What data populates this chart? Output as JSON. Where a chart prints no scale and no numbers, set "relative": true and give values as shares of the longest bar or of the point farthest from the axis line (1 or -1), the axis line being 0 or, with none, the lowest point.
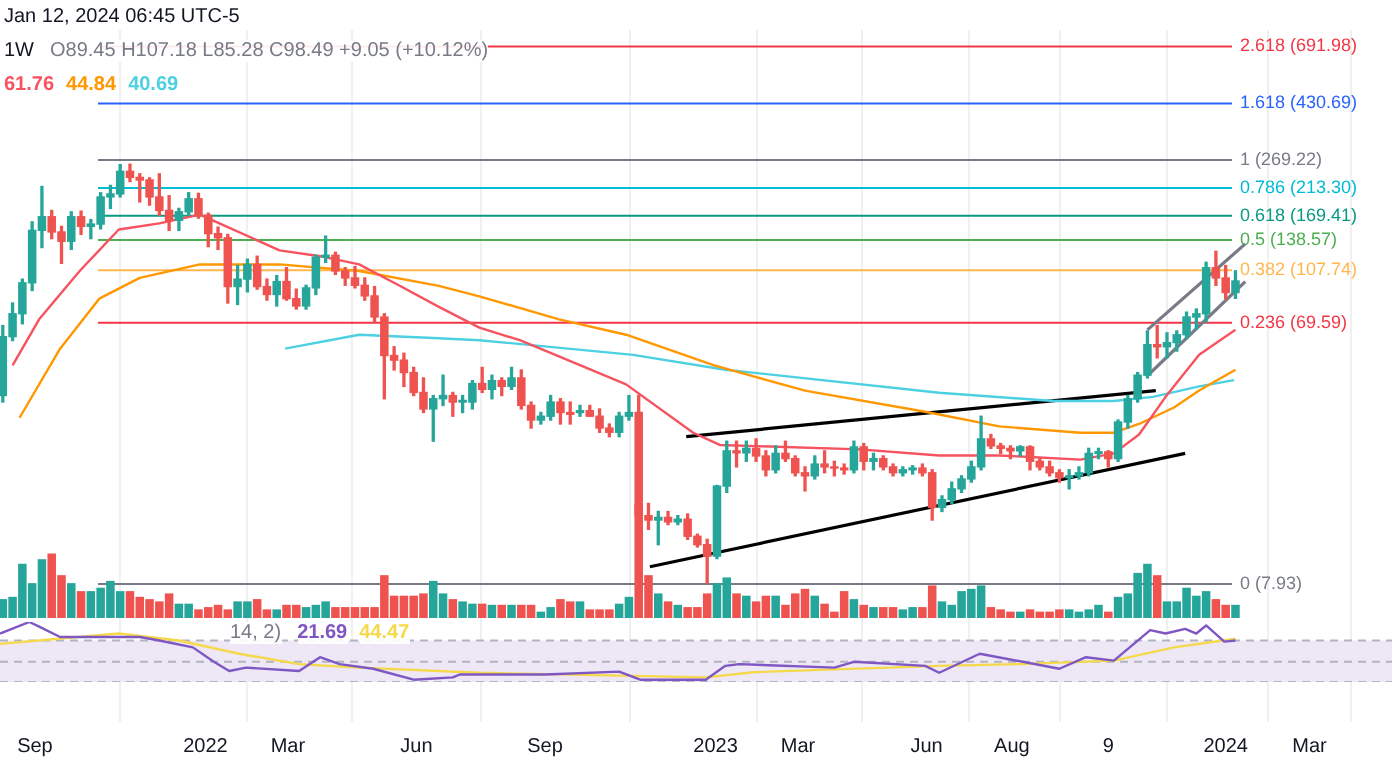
{
  "chart_data": [
    {
      "type": "candlestick",
      "title": "Jan 12, 2024 06:45 UTC-5",
      "subtitle": "1W",
      "annotations": [
        "O89.45 H107.18 L85.28 C98.49 +9.05 (+10.12%)"
      ],
      "log": true,
      "grid": "x",
      "legend": "top left",
      "tick_labels": "x",
      "xlim": [
        "2021-08-07",
        "2024-04-29"
      ],
      "ylim": [
        2.52,
        793
      ],
      "xticks": [
        {
          "value": "2021-09-01",
          "label": "Sep"
        },
        {
          "value": "2022-01-01",
          "label": "2022"
        },
        {
          "value": "2022-03-01",
          "label": "Mar"
        },
        {
          "value": "2022-06-01",
          "label": "Jun"
        },
        {
          "value": "2022-09-01",
          "label": "Sep"
        },
        {
          "value": "2023-01-01",
          "label": "2023"
        },
        {
          "value": "2023-03-01",
          "label": "Mar"
        },
        {
          "value": "2023-06-01",
          "label": "Jun"
        },
        {
          "value": "2023-08-01",
          "label": "Aug"
        },
        {
          "value": "2023-10-09",
          "label": "9"
        },
        {
          "value": "2024-01-01",
          "label": "2024"
        },
        {
          "value": "2024-03-01",
          "label": "Mar"
        }
      ],
      "x": [
        "2021-08-09",
        "2021-08-16",
        "2021-08-23",
        "2021-08-30",
        "2021-09-06",
        "2021-09-13",
        "2021-09-20",
        "2021-09-27",
        "2021-10-04",
        "2021-10-11",
        "2021-10-18",
        "2021-10-25",
        "2021-11-01",
        "2021-11-08",
        "2021-11-15",
        "2021-11-22",
        "2021-11-29",
        "2021-12-06",
        "2021-12-13",
        "2021-12-20",
        "2021-12-27",
        "2022-01-03",
        "2022-01-10",
        "2022-01-17",
        "2022-01-24",
        "2022-01-31",
        "2022-02-07",
        "2022-02-14",
        "2022-02-21",
        "2022-02-28",
        "2022-03-07",
        "2022-03-14",
        "2022-03-21",
        "2022-03-28",
        "2022-04-04",
        "2022-04-11",
        "2022-04-18",
        "2022-04-25",
        "2022-05-02",
        "2022-05-09",
        "2022-05-16",
        "2022-05-23",
        "2022-05-30",
        "2022-06-06",
        "2022-06-13",
        "2022-06-20",
        "2022-06-27",
        "2022-07-04",
        "2022-07-11",
        "2022-07-18",
        "2022-07-25",
        "2022-08-01",
        "2022-08-08",
        "2022-08-15",
        "2022-08-22",
        "2022-08-29",
        "2022-09-05",
        "2022-09-12",
        "2022-09-19",
        "2022-09-26",
        "2022-10-03",
        "2022-10-10",
        "2022-10-17",
        "2022-10-24",
        "2022-10-31",
        "2022-11-07",
        "2022-11-14",
        "2022-11-21",
        "2022-11-28",
        "2022-12-05",
        "2022-12-12",
        "2022-12-19",
        "2022-12-26",
        "2023-01-02",
        "2023-01-09",
        "2023-01-16",
        "2023-01-23",
        "2023-01-30",
        "2023-02-06",
        "2023-02-13",
        "2023-02-20",
        "2023-02-27",
        "2023-03-06",
        "2023-03-13",
        "2023-03-20",
        "2023-03-27",
        "2023-04-03",
        "2023-04-10",
        "2023-04-17",
        "2023-04-24",
        "2023-05-01",
        "2023-05-08",
        "2023-05-15",
        "2023-05-22",
        "2023-05-29",
        "2023-06-05",
        "2023-06-12",
        "2023-06-19",
        "2023-06-26",
        "2023-07-03",
        "2023-07-10",
        "2023-07-17",
        "2023-07-24",
        "2023-07-31",
        "2023-08-07",
        "2023-08-14",
        "2023-08-21",
        "2023-08-28",
        "2023-09-04",
        "2023-09-11",
        "2023-09-18",
        "2023-09-25",
        "2023-10-02",
        "2023-10-09",
        "2023-10-16",
        "2023-10-23",
        "2023-10-30",
        "2023-11-06",
        "2023-11-13",
        "2023-11-20",
        "2023-11-27",
        "2023-12-04",
        "2023-12-11",
        "2023-12-18",
        "2023-12-25",
        "2024-01-01",
        "2024-01-08"
      ],
      "ohlc": [
        [
          38,
          68,
          36,
          62
        ],
        [
          62,
          82,
          60,
          75
        ],
        [
          75,
          100,
          69,
          97
        ],
        [
          97,
          161,
          91,
          150
        ],
        [
          150,
          216,
          130,
          168
        ],
        [
          168,
          177,
          140,
          148
        ],
        [
          148,
          155,
          114,
          137
        ],
        [
          137,
          175,
          128,
          168
        ],
        [
          168,
          176,
          145,
          155
        ],
        [
          155,
          164,
          140,
          158
        ],
        [
          158,
          205,
          152,
          198
        ],
        [
          198,
          218,
          180,
          203
        ],
        [
          203,
          259,
          198,
          245
        ],
        [
          245,
          260,
          225,
          233
        ],
        [
          233,
          240,
          190,
          228
        ],
        [
          228,
          232,
          185,
          198
        ],
        [
          198,
          240,
          170,
          177
        ],
        [
          177,
          200,
          150,
          163
        ],
        [
          163,
          180,
          150,
          175
        ],
        [
          175,
          205,
          170,
          195
        ],
        [
          195,
          204,
          166,
          170
        ],
        [
          170,
          173,
          131,
          146
        ],
        [
          146,
          154,
          128,
          141
        ],
        [
          141,
          145,
          82,
          94
        ],
        [
          94,
          112,
          81,
          100
        ],
        [
          100,
          118,
          90,
          113
        ],
        [
          113,
          121,
          92,
          94
        ],
        [
          94,
          100,
          84,
          88
        ],
        [
          88,
          103,
          80,
          98
        ],
        [
          98,
          110,
          84,
          85
        ],
        [
          85,
          92,
          78,
          80
        ],
        [
          80,
          95,
          78,
          93
        ],
        [
          93,
          122,
          88,
          120
        ],
        [
          120,
          143,
          115,
          122
        ],
        [
          122,
          125,
          104,
          107
        ],
        [
          107,
          110,
          95,
          101
        ],
        [
          101,
          111,
          93,
          95
        ],
        [
          95,
          101,
          84,
          87
        ],
        [
          87,
          94,
          70,
          73
        ],
        [
          73,
          75,
          37,
          53
        ],
        [
          53,
          57,
          47,
          51
        ],
        [
          51,
          54,
          41,
          46
        ],
        [
          46,
          48,
          38,
          39
        ],
        [
          39,
          44,
          33,
          34
        ],
        [
          34,
          38,
          26,
          37
        ],
        [
          37,
          45,
          35,
          38
        ],
        [
          38,
          39,
          32,
          36
        ],
        [
          36,
          38,
          33,
          36.5
        ],
        [
          36,
          43,
          34,
          42
        ],
        [
          42,
          48,
          39,
          40
        ],
        [
          40,
          45,
          37,
          43
        ],
        [
          43,
          44,
          38,
          41
        ],
        [
          41,
          48,
          40,
          44
        ],
        [
          44,
          47,
          34,
          35
        ],
        [
          35,
          36,
          29,
          31
        ],
        [
          31,
          33,
          30,
          32
        ],
        [
          32,
          38,
          31,
          36
        ],
        [
          36,
          37,
          30,
          33
        ],
        [
          33,
          36,
          30,
          32.5
        ],
        [
          33,
          35,
          32,
          33.5
        ],
        [
          33.5,
          35,
          32,
          32
        ],
        [
          32,
          34,
          28,
          29
        ],
        [
          29,
          30,
          27,
          28
        ],
        [
          28,
          33,
          27,
          32
        ],
        [
          32,
          38,
          31,
          33
        ],
        [
          33,
          38,
          8,
          14
        ],
        [
          14,
          15.5,
          12.5,
          13.5
        ],
        [
          13.5,
          14.5,
          11,
          13.8
        ],
        [
          13.8,
          14.5,
          13,
          13.3
        ],
        [
          13.3,
          14,
          13,
          13.6
        ],
        [
          13.6,
          14.2,
          11.5,
          11.8
        ],
        [
          11.8,
          12,
          10.8,
          11
        ],
        [
          11,
          11.5,
          8,
          10
        ],
        [
          10,
          18,
          9.8,
          17.9
        ],
        [
          17.9,
          26,
          17,
          24
        ],
        [
          24,
          26,
          21,
          23.6
        ],
        [
          23.6,
          26,
          22,
          24.5
        ],
        [
          24.5,
          26.5,
          22,
          23
        ],
        [
          23,
          24,
          19.5,
          20.5
        ],
        [
          20.5,
          25,
          20,
          23.5
        ],
        [
          23.5,
          26,
          22,
          22.5
        ],
        [
          22.5,
          23,
          19.5,
          20
        ],
        [
          20,
          21,
          17.2,
          19.5
        ],
        [
          19.5,
          23,
          19,
          21.5
        ],
        [
          21.5,
          24,
          20,
          21
        ],
        [
          21,
          22,
          19.5,
          20.8
        ],
        [
          20.8,
          21.5,
          19.8,
          20.5
        ],
        [
          20.5,
          26,
          20,
          24.8
        ],
        [
          24.8,
          25.5,
          20.5,
          22
        ],
        [
          22,
          23.5,
          20.5,
          22.5
        ],
        [
          22.5,
          23,
          20.5,
          21
        ],
        [
          21,
          21.5,
          19.5,
          20
        ],
        [
          20,
          21,
          19.5,
          20.5
        ],
        [
          20.5,
          21.2,
          19.8,
          20.8
        ],
        [
          20.8,
          21.5,
          19.5,
          20
        ],
        [
          20,
          20.5,
          13.5,
          15
        ],
        [
          15,
          16.5,
          14.5,
          16
        ],
        [
          16,
          18.5,
          15.5,
          17.5
        ],
        [
          17.5,
          19.5,
          17,
          19
        ],
        [
          19,
          22,
          18.5,
          21
        ],
        [
          21,
          32,
          20.5,
          26.5
        ],
        [
          26.5,
          27.5,
          24.5,
          25
        ],
        [
          25,
          25.5,
          23.5,
          24.5
        ],
        [
          24.5,
          25,
          22.5,
          24
        ],
        [
          24,
          25,
          23,
          24.8
        ],
        [
          24.8,
          25,
          20.5,
          22
        ],
        [
          22,
          22.5,
          20.5,
          21
        ],
        [
          21,
          22,
          19.5,
          20
        ],
        [
          20,
          20.5,
          18.5,
          19.2
        ],
        [
          19.2,
          20.5,
          17.5,
          19.5
        ],
        [
          19.5,
          21,
          19,
          20
        ],
        [
          20,
          24.5,
          19.5,
          23.5
        ],
        [
          23.5,
          24.5,
          22.5,
          23.8
        ],
        [
          23.8,
          24,
          21,
          22.5
        ],
        [
          22.5,
          31,
          22,
          30.5
        ],
        [
          30.5,
          38,
          29,
          37
        ],
        [
          37,
          46,
          36,
          45
        ],
        [
          45,
          65,
          44,
          58
        ],
        [
          58,
          68,
          52,
          57
        ],
        [
          57,
          64,
          52,
          59
        ],
        [
          59,
          65,
          55,
          63
        ],
        [
          63,
          76,
          61,
          73
        ],
        [
          73,
          78,
          66,
          75
        ],
        [
          75,
          115,
          70,
          110
        ],
        [
          110,
          126,
          95,
          101
        ],
        [
          101,
          112,
          85,
          89.45
        ],
        [
          89.45,
          107.18,
          85.28,
          98.49
        ]
      ],
      "colors": [
        "#26a69a",
        "#26a69a",
        "#26a69a",
        "#26a69a",
        "#26a69a",
        "#ef5350",
        "#ef5350",
        "#26a69a",
        "#ef5350",
        "#26a69a",
        "#26a69a",
        "#26a69a",
        "#26a69a",
        "#ef5350",
        "#ef5350",
        "#ef5350",
        "#ef5350",
        "#ef5350",
        "#26a69a",
        "#26a69a",
        "#ef5350",
        "#ef5350",
        "#ef5350",
        "#ef5350",
        "#26a69a",
        "#26a69a",
        "#ef5350",
        "#ef5350",
        "#26a69a",
        "#ef5350",
        "#ef5350",
        "#26a69a",
        "#26a69a",
        "#26a69a",
        "#ef5350",
        "#ef5350",
        "#ef5350",
        "#ef5350",
        "#ef5350",
        "#ef5350",
        "#ef5350",
        "#ef5350",
        "#ef5350",
        "#ef5350",
        "#26a69a",
        "#26a69a",
        "#ef5350",
        "#26a69a",
        "#26a69a",
        "#ef5350",
        "#26a69a",
        "#ef5350",
        "#26a69a",
        "#ef5350",
        "#ef5350",
        "#26a69a",
        "#26a69a",
        "#ef5350",
        "#ef5350",
        "#26a69a",
        "#ef5350",
        "#ef5350",
        "#ef5350",
        "#26a69a",
        "#26a69a",
        "#ef5350",
        "#ef5350",
        "#26a69a",
        "#ef5350",
        "#26a69a",
        "#ef5350",
        "#ef5350",
        "#ef5350",
        "#26a69a",
        "#26a69a",
        "#ef5350",
        "#26a69a",
        "#ef5350",
        "#ef5350",
        "#26a69a",
        "#ef5350",
        "#ef5350",
        "#ef5350",
        "#26a69a",
        "#ef5350",
        "#ef5350",
        "#ef5350",
        "#26a69a",
        "#ef5350",
        "#26a69a",
        "#ef5350",
        "#ef5350",
        "#26a69a",
        "#26a69a",
        "#ef5350",
        "#ef5350",
        "#26a69a",
        "#26a69a",
        "#26a69a",
        "#26a69a",
        "#26a69a",
        "#ef5350",
        "#ef5350",
        "#ef5350",
        "#26a69a",
        "#ef5350",
        "#ef5350",
        "#ef5350",
        "#ef5350",
        "#26a69a",
        "#26a69a",
        "#26a69a",
        "#26a69a",
        "#ef5350",
        "#26a69a",
        "#26a69a",
        "#26a69a",
        "#26a69a",
        "#ef5350",
        "#26a69a",
        "#26a69a",
        "#26a69a",
        "#26a69a",
        "#26a69a",
        "#ef5350",
        "#ef5350",
        "#26a69a"
      ],
      "series": [
        {
          "type": "line",
          "name": "61.76",
          "color": "#f7525f",
          "x": [
            "2021-08-16",
            "2021-09-04",
            "2021-10-03",
            "2021-10-31",
            "2021-11-29",
            "2021-12-28",
            "2022-01-11",
            "2022-02-23",
            "2022-03-24",
            "2022-04-21",
            "2022-05-20",
            "2022-06-17",
            "2022-07-16",
            "2022-08-14",
            "2022-10-29",
            "2022-12-16",
            "2023-01-04",
            "2023-04-14",
            "2023-06-10",
            "2023-07-23",
            "2023-09-19",
            "2023-10-13",
            "2023-10-31",
            "2023-11-19",
            "2023-12-13",
            "2024-01-08"
          ],
          "values": [
            48.8,
            71.6,
            107,
            151,
            159,
            171,
            159,
            127,
            121,
            113,
            94.6,
            79.4,
            66.8,
            60.2,
            41.7,
            27.9,
            25.2,
            24.3,
            23.1,
            23.1,
            22.3,
            23.5,
            27.5,
            37.6,
            53.3,
            65.6
          ]
        },
        {
          "type": "line",
          "name": "44.84",
          "color": "#ff9800",
          "x": [
            "2021-08-21",
            "2021-09-19",
            "2021-10-17",
            "2021-11-15",
            "2021-12-28",
            "2022-02-23",
            "2022-04-21",
            "2022-06-17",
            "2022-07-16",
            "2022-09-11",
            "2022-10-29",
            "2022-12-31",
            "2023-03-06",
            "2023-05-31",
            "2023-07-23",
            "2023-09-19",
            "2023-10-13",
            "2023-10-31",
            "2023-11-25",
            "2023-12-13",
            "2024-01-08"
          ],
          "values": [
            31.6,
            56.1,
            85,
            101,
            113,
            113,
            107,
            94.6,
            86.7,
            71.6,
            63,
            48.8,
            39.6,
            33.2,
            29.4,
            27.9,
            27.9,
            30,
            34.4,
            39.6,
            47.1
          ]
        },
        {
          "type": "line",
          "name": "40.69",
          "color": "#4dd0e1",
          "x": [
            "2022-02-27",
            "2022-04-21",
            "2022-06-17",
            "2022-07-16",
            "2022-11-03",
            "2023-01-08",
            "2023-06-10",
            "2023-08-31",
            "2023-10-13",
            "2023-11-10",
            "2023-12-13",
            "2024-01-07"
          ],
          "values": [
            56.1,
            63,
            61.2,
            60.2,
            53.3,
            47.1,
            38.9,
            36.3,
            36.3,
            37.6,
            41,
            43.2
          ]
        },
        {
          "type": "line",
          "color": "#000000",
          "x": [
            "2022-12-11",
            "2023-11-12"
          ],
          "values": [
            27,
            39.6
          ]
        },
        {
          "type": "line",
          "color": "#000000",
          "x": [
            "2022-11-15",
            "2023-12-03"
          ],
          "values": [
            9.16,
            23.5
          ]
        },
        {
          "type": "line",
          "color": "#787b86",
          "x": [
            "2023-11-06",
            "2024-01-15"
          ],
          "values": [
            65.6,
            134
          ]
        },
        {
          "type": "line",
          "color": "#787b86",
          "x": [
            "2023-11-06",
            "2024-01-15"
          ],
          "values": [
            44.8,
            98
          ]
        }
      ],
      "ref_lines": [
        {
          "axis": "y",
          "value": 691.98,
          "label": "2.618 (691.98)",
          "color": "#f23645"
        },
        {
          "axis": "y",
          "value": 430.69,
          "label": "1.618 (430.69)",
          "color": "#2962ff"
        },
        {
          "axis": "y",
          "value": 269.22,
          "label": "1 (269.22)",
          "color": "#787b86"
        },
        {
          "axis": "y",
          "value": 213.3,
          "label": "0.786 (213.30)",
          "color": "#00bcd4"
        },
        {
          "axis": "y",
          "value": 169.41,
          "label": "0.618 (169.41)",
          "color": "#089981"
        },
        {
          "axis": "y",
          "value": 138.57,
          "label": "0.5 (138.57)",
          "color": "#4caf50"
        },
        {
          "axis": "y",
          "value": 107.74,
          "label": "0.382 (107.74)",
          "color": "#ffb74d"
        },
        {
          "axis": "y",
          "value": 69.59,
          "label": "0.236 (69.59)",
          "color": "#f23645"
        },
        {
          "axis": "y",
          "value": 7.93,
          "label": "0 (7.93)",
          "color": "#787b86"
        }
      ]
    },
    {
      "type": "bar",
      "relative": true,
      "tick_labels": false,
      "xlim": [
        "2021-08-07",
        "2024-04-29"
      ],
      "x": [
        "2021-08-09",
        "2021-08-16",
        "2021-08-23",
        "2021-08-30",
        "2021-09-06",
        "2021-09-13",
        "2021-09-20",
        "2021-09-27",
        "2021-10-04",
        "2021-10-11",
        "2021-10-18",
        "2021-10-25",
        "2021-11-01",
        "2021-11-08",
        "2021-11-15",
        "2021-11-22",
        "2021-11-29",
        "2021-12-06",
        "2021-12-13",
        "2021-12-20",
        "2021-12-27",
        "2022-01-03",
        "2022-01-10",
        "2022-01-17",
        "2022-01-24",
        "2022-01-31",
        "2022-02-07",
        "2022-02-14",
        "2022-02-21",
        "2022-02-28",
        "2022-03-07",
        "2022-03-14",
        "2022-03-21",
        "2022-03-28",
        "2022-04-04",
        "2022-04-11",
        "2022-04-18",
        "2022-04-25",
        "2022-05-02",
        "2022-05-09",
        "2022-05-16",
        "2022-05-23",
        "2022-05-30",
        "2022-06-06",
        "2022-06-13",
        "2022-06-20",
        "2022-06-27",
        "2022-07-04",
        "2022-07-11",
        "2022-07-18",
        "2022-07-25",
        "2022-08-01",
        "2022-08-08",
        "2022-08-15",
        "2022-08-22",
        "2022-08-29",
        "2022-09-05",
        "2022-09-12",
        "2022-09-19",
        "2022-09-26",
        "2022-10-03",
        "2022-10-10",
        "2022-10-17",
        "2022-10-24",
        "2022-10-31",
        "2022-11-07",
        "2022-11-14",
        "2022-11-21",
        "2022-11-28",
        "2022-12-05",
        "2022-12-12",
        "2022-12-19",
        "2022-12-26",
        "2023-01-02",
        "2023-01-09",
        "2023-01-16",
        "2023-01-23",
        "2023-01-30",
        "2023-02-06",
        "2023-02-13",
        "2023-02-20",
        "2023-02-27",
        "2023-03-06",
        "2023-03-13",
        "2023-03-20",
        "2023-03-27",
        "2023-04-03",
        "2023-04-10",
        "2023-04-17",
        "2023-04-24",
        "2023-05-01",
        "2023-05-08",
        "2023-05-15",
        "2023-05-22",
        "2023-05-29",
        "2023-06-05",
        "2023-06-12",
        "2023-06-19",
        "2023-06-26",
        "2023-07-03",
        "2023-07-10",
        "2023-07-17",
        "2023-07-24",
        "2023-07-31",
        "2023-08-07",
        "2023-08-14",
        "2023-08-21",
        "2023-08-28",
        "2023-09-04",
        "2023-09-11",
        "2023-09-18",
        "2023-09-25",
        "2023-10-02",
        "2023-10-09",
        "2023-10-16",
        "2023-10-23",
        "2023-10-30",
        "2023-11-06",
        "2023-11-13",
        "2023-11-20",
        "2023-11-27",
        "2023-12-04",
        "2023-12-11",
        "2023-12-18",
        "2023-12-25",
        "2024-01-01",
        "2024-01-08"
      ],
      "values": [
        0.16,
        0.18,
        0.47,
        0.3,
        0.51,
        0.56,
        0.37,
        0.3,
        0.23,
        0.23,
        0.26,
        0.32,
        0.23,
        0.23,
        0.18,
        0.16,
        0.14,
        0.21,
        0.12,
        0.12,
        0.07,
        0.09,
        0.11,
        0.07,
        0.14,
        0.14,
        0.16,
        0.07,
        0.07,
        0.11,
        0.11,
        0.09,
        0.11,
        0.14,
        0.09,
        0.09,
        0.09,
        0.09,
        0.09,
        0.37,
        0.19,
        0.19,
        0.19,
        0.21,
        0.32,
        0.21,
        0.16,
        0.14,
        0.12,
        0.12,
        0.11,
        0.11,
        0.11,
        0.11,
        0.11,
        0.05,
        0.09,
        0.16,
        0.14,
        0.14,
        0.07,
        0.07,
        0.07,
        0.12,
        0.18,
        1,
        0.37,
        0.21,
        0.14,
        0.11,
        0.09,
        0.09,
        0.21,
        0.3,
        0.35,
        0.21,
        0.19,
        0.14,
        0.19,
        0.19,
        0.11,
        0.21,
        0.25,
        0.19,
        0.12,
        0.05,
        0.23,
        0.16,
        0.11,
        0.09,
        0.09,
        0.09,
        0.07,
        0.09,
        0.09,
        0.28,
        0.14,
        0.11,
        0.23,
        0.25,
        0.28,
        0.09,
        0.07,
        0.05,
        0.05,
        0.07,
        0.05,
        0.05,
        0.07,
        0.07,
        0.05,
        0.07,
        0.11,
        0.05,
        0.18,
        0.21,
        0.39,
        0.47,
        0.37,
        0.14,
        0.14,
        0.26,
        0.19,
        0.23,
        0.16,
        0.11,
        0.11
      ],
      "colors": [
        "#26a69a",
        "#26a69a",
        "#26a69a",
        "#26a69a",
        "#26a69a",
        "#ef5350",
        "#ef5350",
        "#26a69a",
        "#ef5350",
        "#26a69a",
        "#26a69a",
        "#26a69a",
        "#26a69a",
        "#ef5350",
        "#ef5350",
        "#ef5350",
        "#ef5350",
        "#ef5350",
        "#26a69a",
        "#26a69a",
        "#ef5350",
        "#ef5350",
        "#ef5350",
        "#ef5350",
        "#26a69a",
        "#26a69a",
        "#ef5350",
        "#ef5350",
        "#26a69a",
        "#ef5350",
        "#ef5350",
        "#26a69a",
        "#26a69a",
        "#26a69a",
        "#ef5350",
        "#ef5350",
        "#ef5350",
        "#ef5350",
        "#ef5350",
        "#ef5350",
        "#ef5350",
        "#ef5350",
        "#ef5350",
        "#ef5350",
        "#26a69a",
        "#26a69a",
        "#ef5350",
        "#26a69a",
        "#26a69a",
        "#ef5350",
        "#26a69a",
        "#ef5350",
        "#26a69a",
        "#ef5350",
        "#ef5350",
        "#26a69a",
        "#26a69a",
        "#ef5350",
        "#ef5350",
        "#26a69a",
        "#ef5350",
        "#ef5350",
        "#ef5350",
        "#26a69a",
        "#26a69a",
        "#ef5350",
        "#ef5350",
        "#26a69a",
        "#ef5350",
        "#26a69a",
        "#ef5350",
        "#ef5350",
        "#ef5350",
        "#26a69a",
        "#26a69a",
        "#ef5350",
        "#26a69a",
        "#ef5350",
        "#ef5350",
        "#26a69a",
        "#ef5350",
        "#ef5350",
        "#ef5350",
        "#26a69a",
        "#ef5350",
        "#ef5350",
        "#ef5350",
        "#26a69a",
        "#ef5350",
        "#26a69a",
        "#ef5350",
        "#ef5350",
        "#26a69a",
        "#26a69a",
        "#ef5350",
        "#ef5350",
        "#26a69a",
        "#26a69a",
        "#26a69a",
        "#26a69a",
        "#26a69a",
        "#ef5350",
        "#ef5350",
        "#ef5350",
        "#26a69a",
        "#ef5350",
        "#ef5350",
        "#ef5350",
        "#ef5350",
        "#26a69a",
        "#26a69a",
        "#26a69a",
        "#26a69a",
        "#ef5350",
        "#26a69a",
        "#26a69a",
        "#26a69a",
        "#26a69a",
        "#ef5350",
        "#26a69a",
        "#26a69a",
        "#26a69a",
        "#26a69a",
        "#26a69a",
        "#ef5350",
        "#ef5350",
        "#26a69a"
      ]
    },
    {
      "type": "line",
      "relative": true,
      "tick_labels": false,
      "legend": "top left",
      "annotations": [
        "14, 2)"
      ],
      "xlim": [
        "2021-08-07",
        "2024-04-29"
      ],
      "bands": [
        {
          "axis": "y",
          "from": -0.04,
          "to": 0.68,
          "color": "#ede7f6"
        }
      ],
      "ref_lines": [
        {
          "axis": "y",
          "value": 0.68,
          "color": "#b2b5be",
          "line_style": "dashed"
        },
        {
          "axis": "y",
          "value": 0.31,
          "color": "#b2b5be",
          "line_style": "dashed"
        },
        {
          "axis": "y",
          "value": -0.04,
          "color": "#b2b5be",
          "line_style": "dashed"
        }
      ],
      "series": [
        {
          "name": "21.69",
          "color": "#7e57c2",
          "x": [
            "2021-08-07",
            "2021-08-28",
            "2021-09-04",
            "2021-09-19",
            "2021-11-15",
            "2021-11-29",
            "2021-12-23",
            "2022-01-07",
            "2022-01-18",
            "2022-01-30",
            "2022-03-09",
            "2022-03-24",
            "2022-04-07",
            "2022-05-01",
            "2022-05-30",
            "2022-06-27",
            "2022-07-02",
            "2022-09-01",
            "2022-10-24",
            "2022-11-08",
            "2022-12-25",
            "2023-01-08",
            "2023-01-18",
            "2023-03-27",
            "2023-04-10",
            "2023-05-31",
            "2023-06-10",
            "2023-07-09",
            "2023-09-04",
            "2023-09-23",
            "2023-10-13",
            "2023-11-08",
            "2023-11-19",
            "2023-12-03",
            "2023-12-11",
            "2023-12-18",
            "2023-12-31",
            "2024-01-08"
          ],
          "values": [
            0.8,
            1,
            0.92,
            0.74,
            0.74,
            0.68,
            0.56,
            0.31,
            0.15,
            0.21,
            0.15,
            0.39,
            0.27,
            0.19,
            0,
            0.04,
            0.09,
            0.09,
            0.14,
            0,
            0,
            0.24,
            0.27,
            0.21,
            0.31,
            0.24,
            0.12,
            0.45,
            0.19,
            0.39,
            0.33,
            0.86,
            0.8,
            0.88,
            0.8,
            0.94,
            0.66,
            0.68
          ]
        },
        {
          "name": "44.47",
          "color": "#f5d94a",
          "x": [
            "2021-08-07",
            "2021-10-31",
            "2021-12-13",
            "2022-01-25",
            "2022-03-09",
            "2022-04-21",
            "2022-07-16",
            "2022-12-25",
            "2023-01-28",
            "2023-06-10",
            "2023-08-07",
            "2023-10-13",
            "2023-11-25",
            "2024-01-08"
          ],
          "values": [
            0.62,
            0.8,
            0.68,
            0.45,
            0.27,
            0.21,
            0.12,
            0.04,
            0.13,
            0.24,
            0.27,
            0.33,
            0.56,
            0.71
          ]
        }
      ]
    }
  ]
}
